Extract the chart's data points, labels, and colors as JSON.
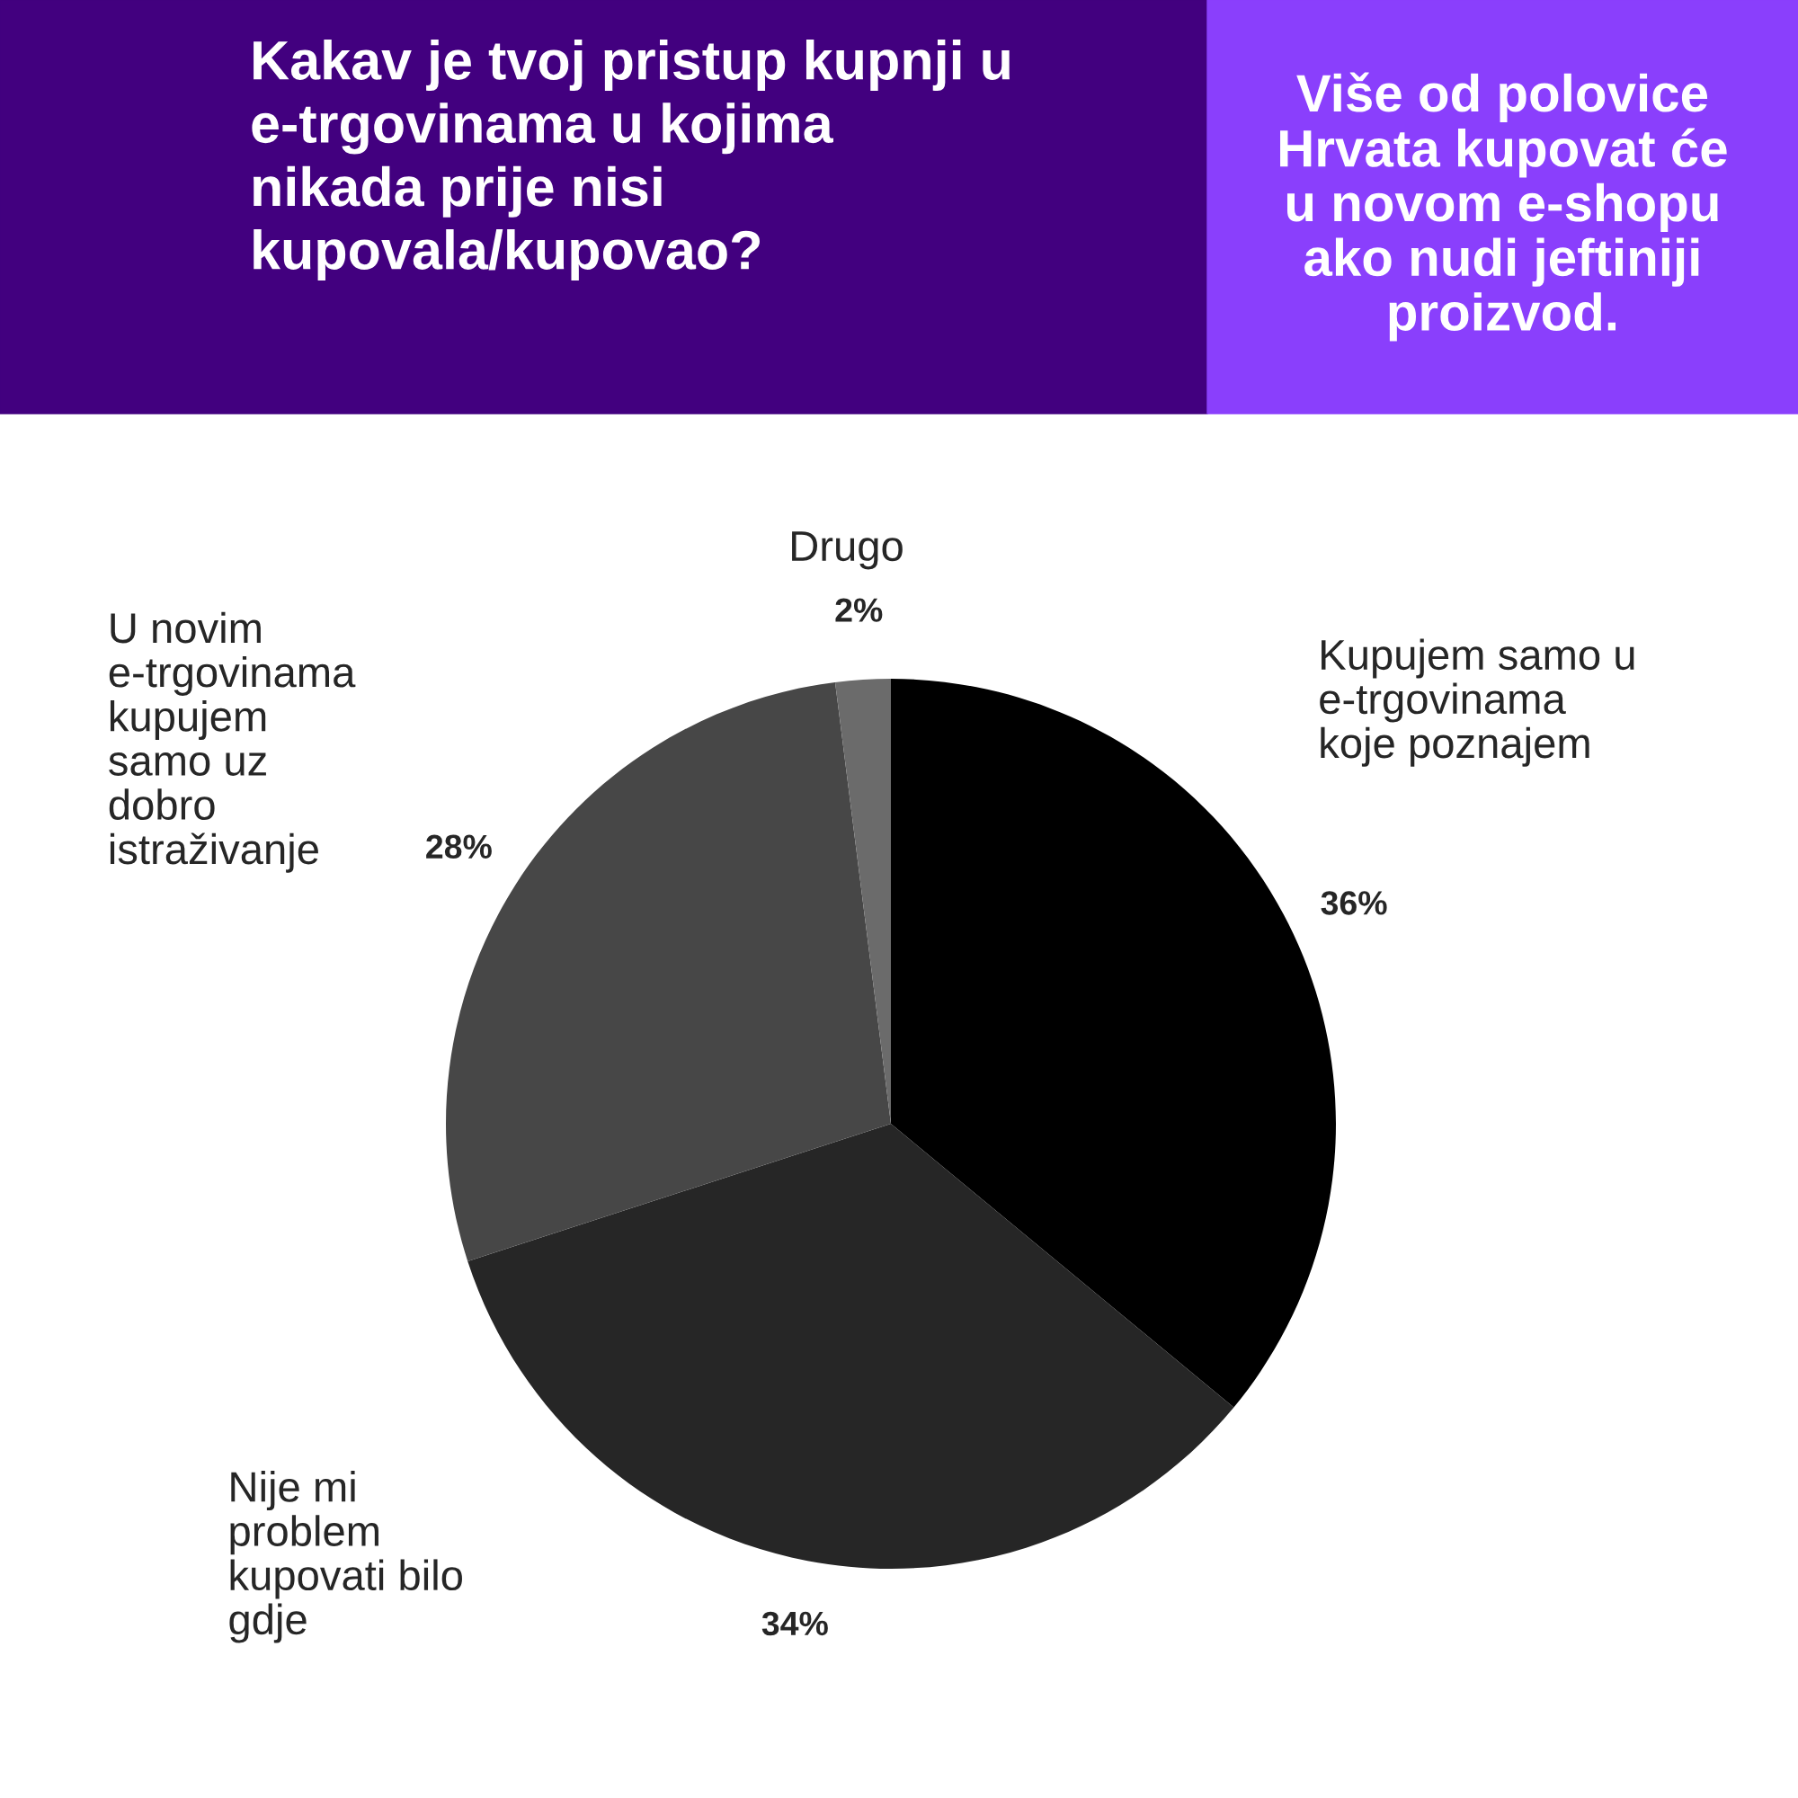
{
  "chart_data": {
    "type": "pie",
    "title": "Kakav je tvoj pristup kupnji u\ne-trgovinama u kojima\nnikada prije nisi\nkupovala/kupovao?",
    "subtitle": "Više od polovice\nHrvata kupovat će\nu novom e-shopu\nako nudi jeftiniji\nproizvod.",
    "categories": [
      "Kupujem samo u\ne-trgovinama\nkoje poznajem",
      "Nije mi\nproblem\nkupovati bilo\ngdje",
      "U novim\ne-trgovinama\nkupujem\nsamo uz\ndobro\nistraživanje",
      "Drugo"
    ],
    "values": [
      36,
      34,
      28,
      2
    ],
    "value_labels": [
      "36%",
      "34%",
      "28%",
      "2%"
    ],
    "colors": [
      "#000000",
      "#262626",
      "#474747",
      "#6b6b6b"
    ]
  }
}
